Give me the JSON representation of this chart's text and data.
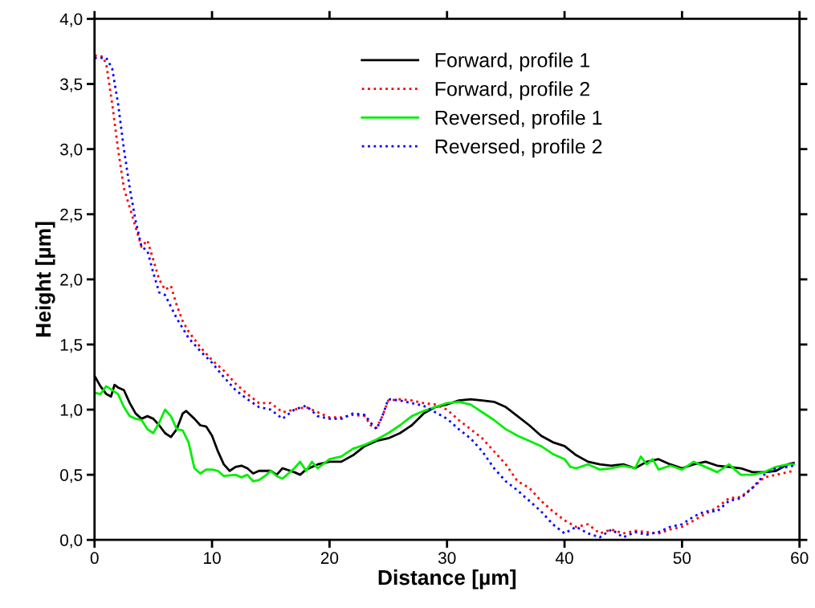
{
  "chart_data": {
    "type": "line",
    "xlabel": "Distance [µm]",
    "ylabel": "Height [µm]",
    "xlim": [
      0,
      60
    ],
    "ylim": [
      0,
      4
    ],
    "xticks": [
      0,
      10,
      20,
      30,
      40,
      50,
      60
    ],
    "yticks": [
      {
        "value": 0,
        "label": "0,0"
      },
      {
        "value": 0.5,
        "label": "0,5"
      },
      {
        "value": 1,
        "label": "1,0"
      },
      {
        "value": 1.5,
        "label": "1,5"
      },
      {
        "value": 2,
        "label": "2,0"
      },
      {
        "value": 2.5,
        "label": "2,5"
      },
      {
        "value": 3,
        "label": "3,0"
      },
      {
        "value": 3.5,
        "label": "3,5"
      },
      {
        "value": 4,
        "label": "4,0"
      }
    ],
    "grid": false,
    "legend": "top",
    "series": [
      {
        "name": "Forward, profile 1",
        "color": "#000000",
        "line_style": "solid",
        "x": [
          0,
          0.5,
          1,
          1.4,
          1.7,
          2,
          2.5,
          3,
          3.5,
          4,
          4.5,
          5,
          5.5,
          6,
          6.5,
          7,
          7.5,
          7.8,
          8.5,
          9,
          9.5,
          10,
          10.5,
          11,
          11.5,
          12,
          12.5,
          13,
          13.5,
          14,
          15,
          15.5,
          16,
          17,
          17.5,
          18,
          19,
          20,
          21,
          22,
          23,
          24,
          25,
          26,
          27,
          28,
          29,
          30,
          31,
          32,
          33,
          34,
          35,
          36,
          37,
          38,
          39,
          40,
          41,
          42,
          43,
          44,
          45,
          46,
          47,
          48,
          49,
          50,
          51,
          52,
          53,
          54,
          55,
          56,
          57,
          58,
          59,
          59.5
        ],
        "values": [
          1.26,
          1.18,
          1.12,
          1.1,
          1.19,
          1.17,
          1.15,
          1.05,
          0.97,
          0.93,
          0.95,
          0.93,
          0.88,
          0.82,
          0.79,
          0.85,
          0.97,
          0.99,
          0.93,
          0.88,
          0.87,
          0.8,
          0.68,
          0.58,
          0.53,
          0.56,
          0.57,
          0.55,
          0.51,
          0.53,
          0.53,
          0.5,
          0.55,
          0.52,
          0.5,
          0.54,
          0.58,
          0.6,
          0.6,
          0.65,
          0.72,
          0.76,
          0.78,
          0.82,
          0.88,
          0.97,
          1.02,
          1.04,
          1.07,
          1.08,
          1.07,
          1.06,
          1.02,
          0.95,
          0.88,
          0.8,
          0.75,
          0.72,
          0.65,
          0.6,
          0.58,
          0.57,
          0.58,
          0.55,
          0.6,
          0.62,
          0.58,
          0.55,
          0.58,
          0.6,
          0.57,
          0.56,
          0.55,
          0.52,
          0.52,
          0.53,
          0.58,
          0.59
        ]
      },
      {
        "name": "Forward, profile 2",
        "color": "#ff0000",
        "line_style": "dotted",
        "x": [
          0,
          0.7,
          1,
          1.5,
          2,
          2.5,
          3,
          3.5,
          4,
          4.5,
          5,
          5.5,
          6,
          6.5,
          7,
          7.5,
          8,
          9,
          10,
          11,
          12,
          13,
          14,
          15,
          16,
          17,
          18,
          19,
          20,
          21,
          22,
          23,
          23.5,
          24,
          24.5,
          25,
          26,
          27,
          28,
          29,
          30,
          31,
          32,
          33,
          34,
          35,
          36,
          37,
          38,
          39,
          40,
          41,
          42,
          43,
          44,
          45,
          46,
          47,
          48,
          49,
          50,
          51,
          52,
          53,
          54,
          55,
          56,
          57,
          58,
          59,
          59.5
        ],
        "values": [
          3.72,
          3.71,
          3.65,
          3.35,
          3.0,
          2.7,
          2.55,
          2.4,
          2.25,
          2.3,
          2.15,
          2.0,
          1.92,
          1.95,
          1.8,
          1.68,
          1.6,
          1.48,
          1.38,
          1.3,
          1.2,
          1.12,
          1.05,
          1.05,
          0.98,
          1.0,
          1.02,
          0.98,
          0.94,
          0.94,
          0.96,
          0.95,
          0.88,
          0.86,
          0.95,
          1.07,
          1.08,
          1.07,
          1.05,
          1.04,
          1.0,
          0.92,
          0.85,
          0.78,
          0.68,
          0.58,
          0.45,
          0.4,
          0.3,
          0.22,
          0.15,
          0.1,
          0.12,
          0.05,
          0.08,
          0.05,
          0.07,
          0.06,
          0.05,
          0.08,
          0.1,
          0.15,
          0.2,
          0.25,
          0.32,
          0.33,
          0.4,
          0.48,
          0.5,
          0.52,
          0.53
        ]
      },
      {
        "name": "Reversed, profile 1",
        "color": "#00ee00",
        "line_style": "solid",
        "x": [
          0,
          0.5,
          1,
          1.5,
          2,
          2.5,
          3,
          3.5,
          4,
          4.5,
          5,
          5.5,
          6,
          6.5,
          7,
          7.5,
          8,
          8.5,
          9,
          9.5,
          10,
          10.5,
          11,
          12,
          12.5,
          13,
          13.5,
          14,
          14.5,
          15,
          15.5,
          16,
          17,
          17.5,
          18,
          18.5,
          19,
          20,
          21,
          22,
          23,
          24,
          25,
          26,
          27,
          28,
          29,
          30,
          31,
          32,
          33,
          34,
          35,
          36,
          37,
          38,
          39,
          40,
          40.5,
          41,
          42,
          43,
          44,
          45,
          46,
          46.5,
          47,
          47.5,
          48,
          49,
          50,
          51,
          52,
          53,
          54,
          55,
          56,
          57,
          58,
          59,
          59.5
        ],
        "values": [
          1.13,
          1.12,
          1.18,
          1.15,
          1.12,
          1.02,
          0.95,
          0.93,
          0.92,
          0.85,
          0.82,
          0.9,
          1.0,
          0.95,
          0.85,
          0.84,
          0.75,
          0.55,
          0.51,
          0.54,
          0.54,
          0.53,
          0.49,
          0.5,
          0.48,
          0.5,
          0.45,
          0.46,
          0.49,
          0.53,
          0.49,
          0.47,
          0.55,
          0.6,
          0.53,
          0.6,
          0.55,
          0.62,
          0.64,
          0.7,
          0.73,
          0.77,
          0.82,
          0.88,
          0.95,
          0.99,
          1.02,
          1.05,
          1.06,
          1.04,
          0.98,
          0.92,
          0.85,
          0.8,
          0.76,
          0.72,
          0.66,
          0.62,
          0.56,
          0.55,
          0.58,
          0.54,
          0.55,
          0.57,
          0.55,
          0.64,
          0.58,
          0.62,
          0.54,
          0.57,
          0.54,
          0.6,
          0.56,
          0.52,
          0.58,
          0.5,
          0.5,
          0.52,
          0.56,
          0.58,
          0.58
        ]
      },
      {
        "name": "Reversed, profile 2",
        "color": "#0000ff",
        "line_style": "dotted",
        "x": [
          0,
          1,
          1.5,
          2,
          2.5,
          3,
          3.5,
          4,
          4.5,
          5,
          5.5,
          6,
          7,
          8,
          9,
          10,
          11,
          12,
          13,
          14,
          15,
          16,
          17,
          18,
          19,
          20,
          21,
          22,
          23,
          23.5,
          24,
          24.5,
          25,
          26,
          27,
          28,
          29,
          30,
          31,
          32,
          33,
          34,
          35,
          36,
          37,
          38,
          39,
          40,
          41,
          42,
          43,
          44,
          45,
          46,
          47,
          48,
          49,
          50,
          51,
          52,
          53,
          54,
          55,
          56,
          57,
          58,
          59,
          59.5
        ],
        "values": [
          3.7,
          3.7,
          3.62,
          3.35,
          3.0,
          2.7,
          2.45,
          2.25,
          2.22,
          2.05,
          1.9,
          1.88,
          1.7,
          1.55,
          1.45,
          1.36,
          1.25,
          1.15,
          1.08,
          1.02,
          1.0,
          0.93,
          1.0,
          1.03,
          0.95,
          0.93,
          0.93,
          0.97,
          0.96,
          0.9,
          0.85,
          0.95,
          1.08,
          1.07,
          1.05,
          1.03,
          0.98,
          0.93,
          0.85,
          0.78,
          0.68,
          0.55,
          0.45,
          0.38,
          0.3,
          0.22,
          0.12,
          0.05,
          0.1,
          0.05,
          0.02,
          0.08,
          0.02,
          0.06,
          0.04,
          0.06,
          0.1,
          0.12,
          0.18,
          0.22,
          0.22,
          0.3,
          0.32,
          0.4,
          0.5,
          0.55,
          0.56,
          0.57
        ]
      }
    ]
  }
}
